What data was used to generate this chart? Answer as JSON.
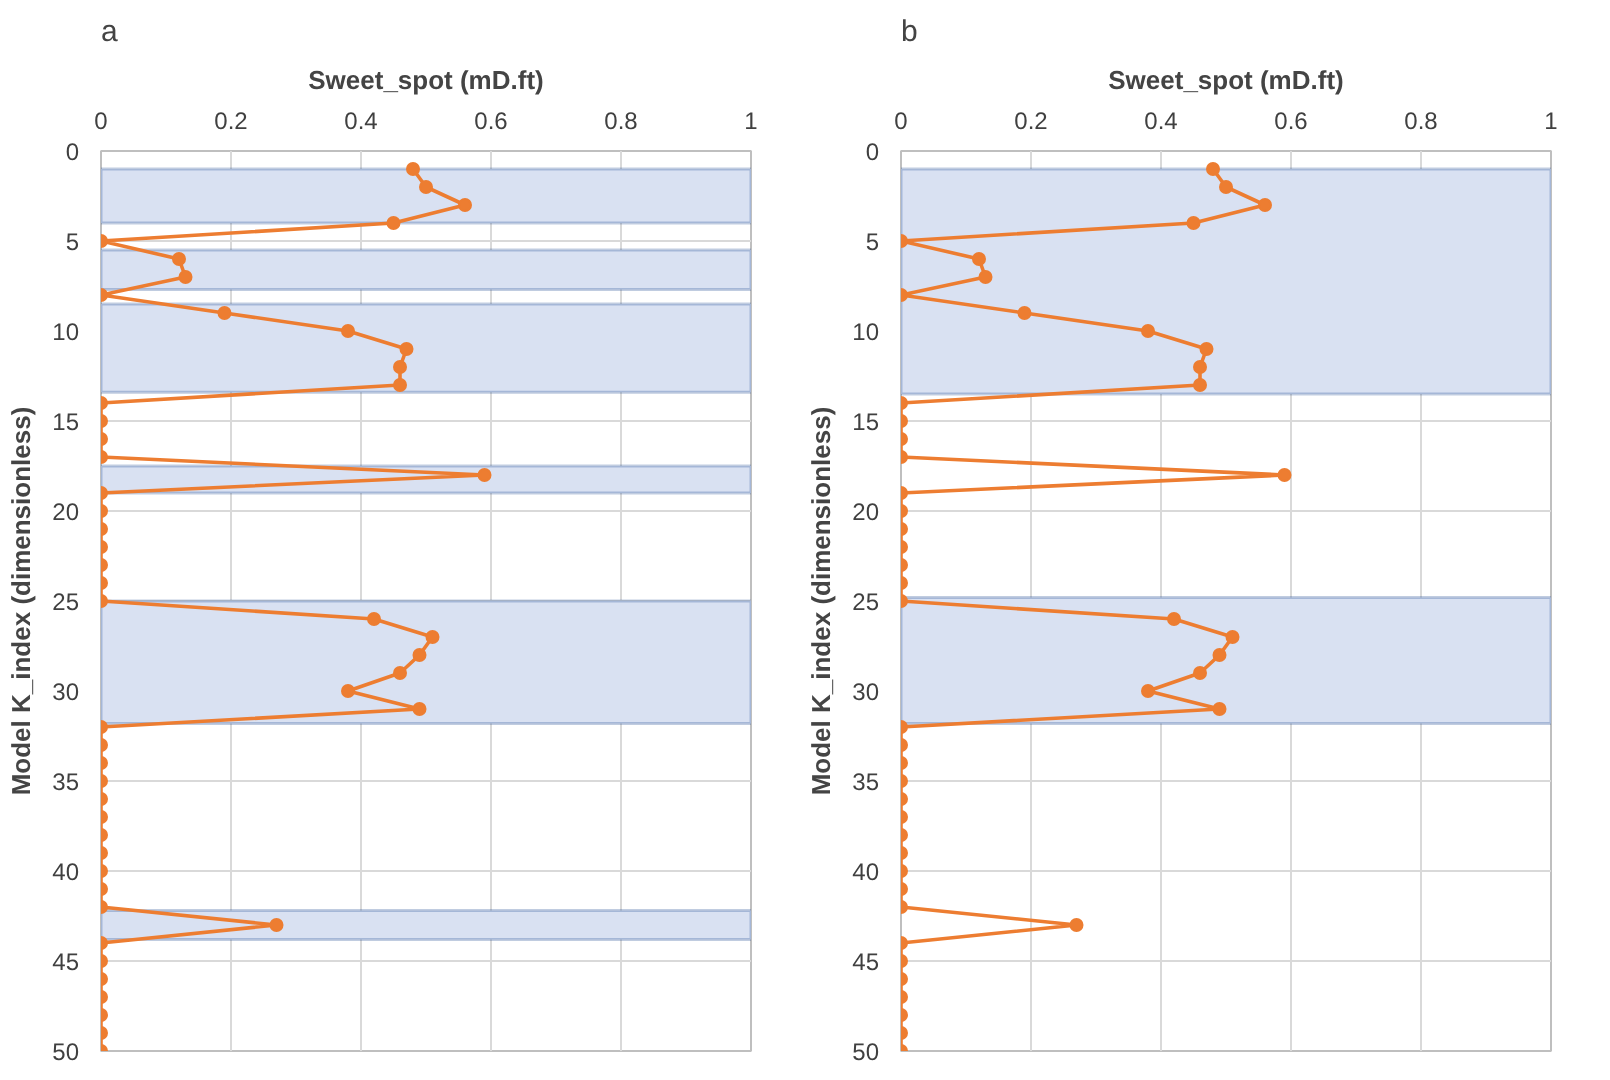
{
  "chart_data": [
    {
      "type": "line",
      "title": "a",
      "xlabel": "Sweet_spot (mD.ft)",
      "ylabel": "Model K_index (dimensionless)",
      "xlim": [
        0,
        1
      ],
      "xticks": [
        0,
        0.2,
        0.4,
        0.6,
        0.8,
        1
      ],
      "ylim": [
        50,
        0
      ],
      "yticks": [
        0,
        5,
        10,
        15,
        20,
        25,
        30,
        35,
        40,
        45,
        50
      ],
      "grid": true,
      "marker": "circle",
      "line_style": "solid",
      "series": [
        {
          "color": "#ed7d31",
          "x": [
            0.48,
            0.5,
            0.56,
            0.45,
            0,
            0.12,
            0.13,
            0,
            0.19,
            0.38,
            0.47,
            0.46,
            0.46,
            0,
            0,
            0,
            0,
            0.59,
            0,
            0,
            0,
            0,
            0,
            0,
            0,
            0.42,
            0.51,
            0.49,
            0.46,
            0.38,
            0.49,
            0,
            0,
            0,
            0,
            0,
            0,
            0,
            0,
            0,
            0,
            0,
            0.27,
            0,
            0,
            0,
            0,
            0,
            0,
            0
          ],
          "values": [
            1,
            2,
            3,
            4,
            5,
            6,
            7,
            8,
            9,
            10,
            11,
            12,
            13,
            14,
            15,
            16,
            17,
            18,
            19,
            20,
            21,
            22,
            23,
            24,
            25,
            26,
            27,
            28,
            29,
            30,
            31,
            32,
            33,
            34,
            35,
            36,
            37,
            38,
            39,
            40,
            41,
            42,
            43,
            44,
            45,
            46,
            47,
            48,
            49,
            50
          ]
        }
      ],
      "bands": [
        {
          "axis": "y",
          "from": 1,
          "to": 4,
          "color": "#d9e1f2"
        },
        {
          "axis": "y",
          "from": 5.5,
          "to": 7.7,
          "color": "#d9e1f2"
        },
        {
          "axis": "y",
          "from": 8.5,
          "to": 13.4,
          "color": "#d9e1f2"
        },
        {
          "axis": "y",
          "from": 17.5,
          "to": 19,
          "color": "#d9e1f2"
        },
        {
          "axis": "y",
          "from": 25,
          "to": 31.8,
          "color": "#d9e1f2"
        },
        {
          "axis": "y",
          "from": 42.2,
          "to": 43.8,
          "color": "#d9e1f2"
        }
      ]
    },
    {
      "type": "line",
      "title": "b",
      "xlabel": "Sweet_spot (mD.ft)",
      "ylabel": "Model K_index (dimensionless)",
      "xlim": [
        0,
        1
      ],
      "xticks": [
        0,
        0.2,
        0.4,
        0.6,
        0.8,
        1
      ],
      "ylim": [
        50,
        0
      ],
      "yticks": [
        0,
        5,
        10,
        15,
        20,
        25,
        30,
        35,
        40,
        45,
        50
      ],
      "grid": true,
      "marker": "circle",
      "line_style": "solid",
      "series": [
        {
          "color": "#ed7d31",
          "x": [
            0.48,
            0.5,
            0.56,
            0.45,
            0,
            0.12,
            0.13,
            0,
            0.19,
            0.38,
            0.47,
            0.46,
            0.46,
            0,
            0,
            0,
            0,
            0.59,
            0,
            0,
            0,
            0,
            0,
            0,
            0,
            0.42,
            0.51,
            0.49,
            0.46,
            0.38,
            0.49,
            0,
            0,
            0,
            0,
            0,
            0,
            0,
            0,
            0,
            0,
            0,
            0.27,
            0,
            0,
            0,
            0,
            0,
            0,
            0
          ],
          "values": [
            1,
            2,
            3,
            4,
            5,
            6,
            7,
            8,
            9,
            10,
            11,
            12,
            13,
            14,
            15,
            16,
            17,
            18,
            19,
            20,
            21,
            22,
            23,
            24,
            25,
            26,
            27,
            28,
            29,
            30,
            31,
            32,
            33,
            34,
            35,
            36,
            37,
            38,
            39,
            40,
            41,
            42,
            43,
            44,
            45,
            46,
            47,
            48,
            49,
            50
          ]
        }
      ],
      "bands": [
        {
          "axis": "y",
          "from": 1,
          "to": 13.5,
          "color": "#d9e1f2"
        },
        {
          "axis": "y",
          "from": 24.8,
          "to": 31.8,
          "color": "#d9e1f2"
        }
      ]
    }
  ]
}
